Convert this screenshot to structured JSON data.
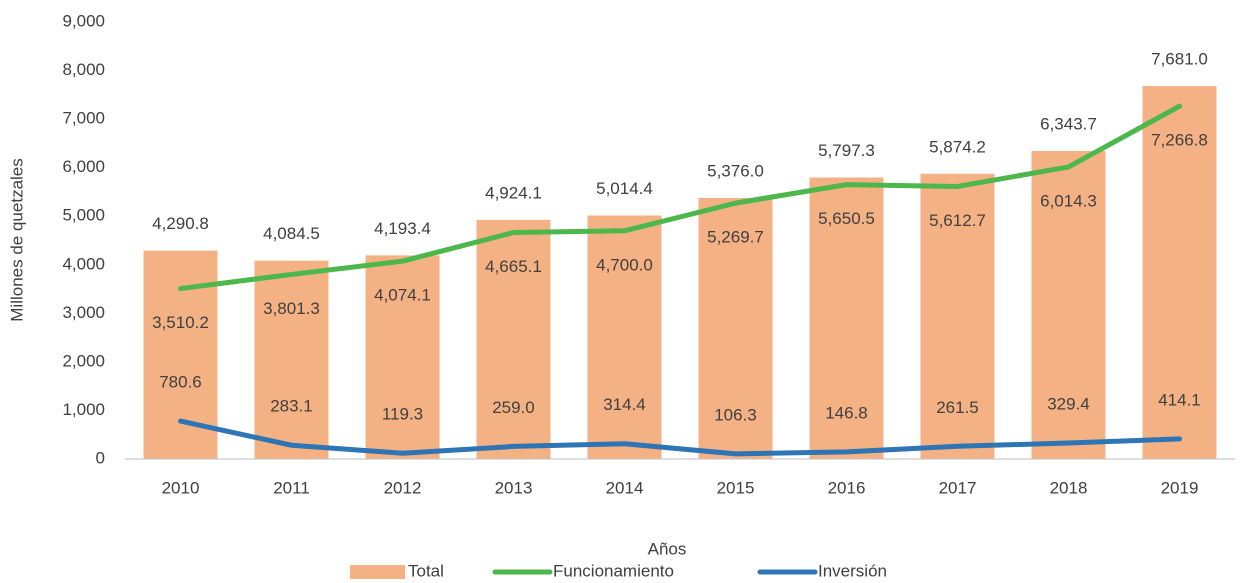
{
  "chart_data": {
    "type": "combo",
    "x_label": "Años",
    "y_label": "Millones de quetzales",
    "categories": [
      "2010",
      "2011",
      "2012",
      "2013",
      "2014",
      "2015",
      "2016",
      "2017",
      "2018",
      "2019"
    ],
    "series": [
      {
        "name": "Total",
        "type": "bar",
        "color": "#f4b183",
        "values": [
          4290.8,
          4084.5,
          4193.4,
          4924.1,
          5014.4,
          5376.0,
          5797.3,
          5874.2,
          6343.7,
          7681.0
        ],
        "value_labels": [
          "4,290.8",
          "4,084.5",
          "4,193.4",
          "4,924.1",
          "5,014.4",
          "5,376.0",
          "5,797.3",
          "5,874.2",
          "6,343.7",
          "7,681.0"
        ]
      },
      {
        "name": "Funcionamiento",
        "type": "line",
        "color": "#4cb74a",
        "values": [
          3510.2,
          3801.3,
          4074.1,
          4665.1,
          4700.0,
          5269.7,
          5650.5,
          5612.7,
          6014.3,
          7266.8
        ],
        "value_labels": [
          "3,510.2",
          "3,801.3",
          "4,074.1",
          "4,665.1",
          "4,700.0",
          "5,269.7",
          "5,650.5",
          "5,612.7",
          "6,014.3",
          "7,266.8"
        ]
      },
      {
        "name": "Inversión",
        "type": "line",
        "color": "#2e75b6",
        "values": [
          780.6,
          283.1,
          119.3,
          259.0,
          314.4,
          106.3,
          146.8,
          261.5,
          329.4,
          414.1
        ],
        "value_labels": [
          "780.6",
          "283.1",
          "119.3",
          "259.0",
          "314.4",
          "106.3",
          "146.8",
          "261.5",
          "329.4",
          "414.1"
        ]
      }
    ],
    "ylim": [
      0,
      9000
    ],
    "yticks": [
      0,
      {
        "value": 1000,
        "label": "1,000"
      },
      {
        "value": 2000,
        "label": "2,000"
      },
      {
        "value": 3000,
        "label": "3,000"
      },
      {
        "value": 4000,
        "label": "4,000"
      },
      {
        "value": 5000,
        "label": "5,000"
      },
      {
        "value": 6000,
        "label": "6,000"
      },
      {
        "value": 7000,
        "label": "7,000"
      },
      {
        "value": 8000,
        "label": "8,000"
      },
      {
        "value": 9000,
        "label": "9,000"
      }
    ],
    "grid": false,
    "legend": "bottom"
  }
}
